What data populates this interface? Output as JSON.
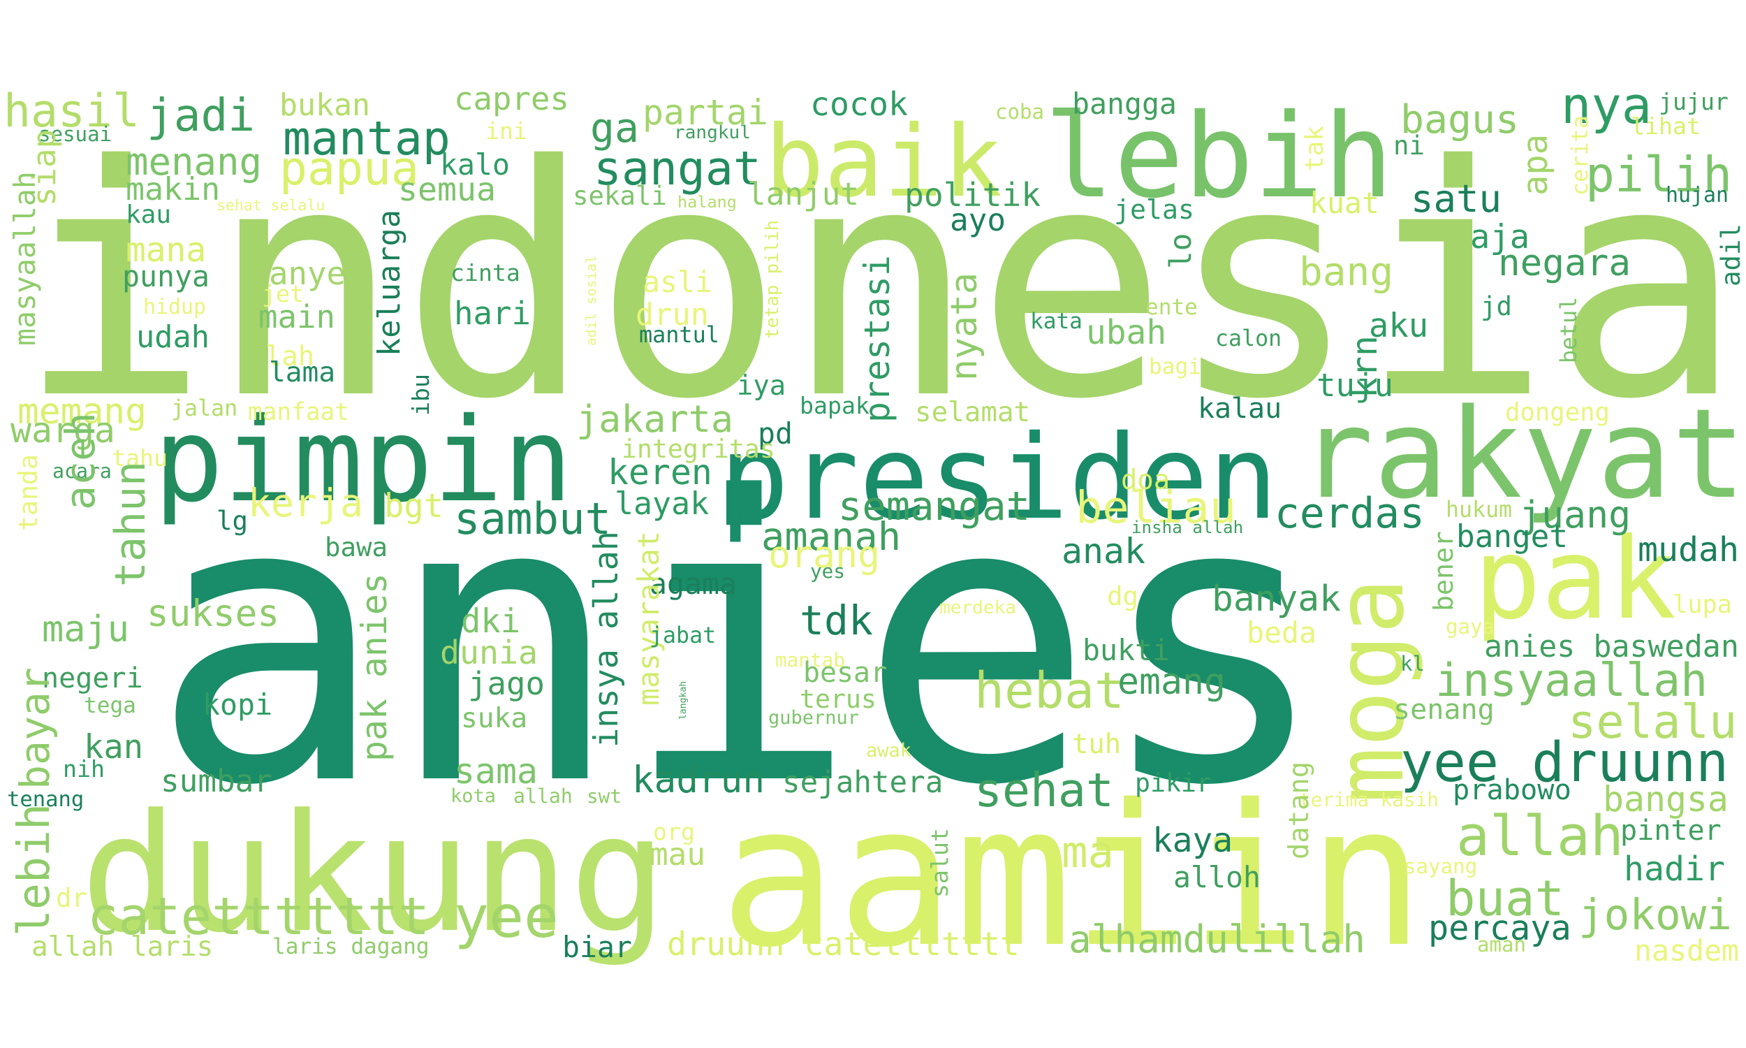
{
  "words": [
    {
      "text": "indonesia",
      "color": "#a5d46a"
    },
    {
      "text": "anies",
      "color": "#198c69"
    },
    {
      "text": "aamiin",
      "color": "#d9f06a"
    },
    {
      "text": "dukung",
      "color": "#b9e16e"
    },
    {
      "text": "pimpin",
      "color": "#228c5f"
    },
    {
      "text": "presiden",
      "color": "#198c69"
    },
    {
      "text": "rakyat",
      "color": "#7cc46b"
    },
    {
      "text": "lebih",
      "color": "#78c26a"
    },
    {
      "text": "baik",
      "color": "#ccea6a"
    },
    {
      "text": "pak",
      "color": "#d9f06a"
    },
    {
      "text": "moga",
      "color": "#d0ec6a"
    },
    {
      "text": "catettttttt",
      "color": "#a3d56b"
    },
    {
      "text": "yee",
      "color": "#a3d56b"
    },
    {
      "text": "yee druunn",
      "color": "#1a7f5a"
    },
    {
      "text": "insyaallah",
      "color": "#7fc46b"
    },
    {
      "text": "allah",
      "color": "#9fd46a"
    },
    {
      "text": "buat",
      "color": "#8fcc6a"
    },
    {
      "text": "jokowi",
      "color": "#8fcc6a"
    },
    {
      "text": "hebat",
      "color": "#b3dd6a"
    },
    {
      "text": "mantap",
      "color": "#228c5f"
    },
    {
      "text": "papua",
      "color": "#d9f06a"
    },
    {
      "text": "sangat",
      "color": "#228c5f"
    },
    {
      "text": "pilih",
      "color": "#7cc46b"
    },
    {
      "text": "nya",
      "color": "#2e9c64"
    },
    {
      "text": "maju",
      "color": "#7cc46b"
    },
    {
      "text": "jadi",
      "color": "#3f9f5f"
    },
    {
      "text": "hasil",
      "color": "#b3dd6a"
    },
    {
      "text": "ga",
      "color": "#3f9f5f"
    },
    {
      "text": "partai",
      "color": "#a3d56b"
    },
    {
      "text": "capres",
      "color": "#8fcc6a"
    },
    {
      "text": "bagus",
      "color": "#8fcc6a"
    },
    {
      "text": "cocok",
      "color": "#2e9c64"
    },
    {
      "text": "bangga",
      "color": "#3f9f5f"
    },
    {
      "text": "jujur",
      "color": "#3f9f5f"
    },
    {
      "text": "menang",
      "color": "#7cc46b"
    },
    {
      "text": "bukan",
      "color": "#b3dd6a"
    },
    {
      "text": "ini",
      "color": "#e8f57a"
    },
    {
      "text": "sesuai",
      "color": "#3f9f5f"
    },
    {
      "text": "rangkul",
      "color": "#3f9f5f"
    },
    {
      "text": "coba",
      "color": "#b3dd6a"
    },
    {
      "text": "lihat",
      "color": "#d9f06a"
    },
    {
      "text": "ni",
      "color": "#3f9f5f"
    },
    {
      "text": "tak",
      "color": "#e8f57a"
    },
    {
      "text": "apa",
      "color": "#a3d56b"
    },
    {
      "text": "cerita",
      "color": "#e8f57a"
    },
    {
      "text": "hujan",
      "color": "#1a7f5a"
    },
    {
      "text": "adil",
      "color": "#228c5f"
    },
    {
      "text": "kalo",
      "color": "#2e9c64"
    },
    {
      "text": "makin",
      "color": "#7cc46b"
    },
    {
      "text": "semua",
      "color": "#7cc46b"
    },
    {
      "text": "siap",
      "color": "#b3dd6a"
    },
    {
      "text": "masyaallah",
      "color": "#8fcc6a"
    },
    {
      "text": "kau",
      "color": "#2e9c64"
    },
    {
      "text": "sehat selalu",
      "color": "#e8f57a"
    },
    {
      "text": "sekali",
      "color": "#7cc46b"
    },
    {
      "text": "halang",
      "color": "#b3dd6a"
    },
    {
      "text": "lanjut",
      "color": "#8fcc6a"
    },
    {
      "text": "politik",
      "color": "#3f9f5f"
    },
    {
      "text": "jelas",
      "color": "#2e9c64"
    },
    {
      "text": "kuat",
      "color": "#d9f06a"
    },
    {
      "text": "satu",
      "color": "#1a7f5a"
    },
    {
      "text": "aja",
      "color": "#2e9c64"
    },
    {
      "text": "negara",
      "color": "#3f9f5f"
    },
    {
      "text": "mana",
      "color": "#d9f06a"
    },
    {
      "text": "punya",
      "color": "#3f9f5f"
    },
    {
      "text": "anye",
      "color": "#a3d56b"
    },
    {
      "text": "cinta",
      "color": "#3f9f5f"
    },
    {
      "text": "keluarga",
      "color": "#1a7f5a"
    },
    {
      "text": "adil sosial",
      "color": "#e8f57a"
    },
    {
      "text": "tetap pilih",
      "color": "#d9f06a"
    },
    {
      "text": "asli",
      "color": "#e8f57a"
    },
    {
      "text": "ayo",
      "color": "#1a7f5a"
    },
    {
      "text": "lo",
      "color": "#3f9f5f"
    },
    {
      "text": "bang",
      "color": "#b3dd6a"
    },
    {
      "text": "ente",
      "color": "#b3dd6a"
    },
    {
      "text": "hidup",
      "color": "#e8f57a"
    },
    {
      "text": "jet",
      "color": "#e8f57a"
    },
    {
      "text": "main",
      "color": "#7cc46b"
    },
    {
      "text": "hari",
      "color": "#2e9c64"
    },
    {
      "text": "drun",
      "color": "#e8f57a"
    },
    {
      "text": "udah",
      "color": "#2e9c64"
    },
    {
      "text": "lah",
      "color": "#e8f57a"
    },
    {
      "text": "mantul",
      "color": "#1a7f5a"
    },
    {
      "text": "lama",
      "color": "#228c5f"
    },
    {
      "text": "prestasi",
      "color": "#2e9c64"
    },
    {
      "text": "nyata",
      "color": "#8fcc6a"
    },
    {
      "text": "ubah",
      "color": "#7cc46b"
    },
    {
      "text": "kata",
      "color": "#2e9c64"
    },
    {
      "text": "calon",
      "color": "#3f9f5f"
    },
    {
      "text": "krn",
      "color": "#2e9c64"
    },
    {
      "text": "aku",
      "color": "#2e9c64"
    },
    {
      "text": "jd",
      "color": "#2e9c64"
    },
    {
      "text": "betul",
      "color": "#7cc46b"
    },
    {
      "text": "bagi",
      "color": "#e8f57a"
    },
    {
      "text": "tuju",
      "color": "#2e9c64"
    },
    {
      "text": "memang",
      "color": "#d9f06a"
    },
    {
      "text": "ibu",
      "color": "#1a7f5a"
    },
    {
      "text": "jalan",
      "color": "#b3dd6a"
    },
    {
      "text": "manfaat",
      "color": "#e8f57a"
    },
    {
      "text": "warga",
      "color": "#8fcc6a"
    },
    {
      "text": "acara",
      "color": "#3f9f5f"
    },
    {
      "text": "tahu",
      "color": "#e8f57a"
    },
    {
      "text": "tanda",
      "color": "#e8f57a"
    },
    {
      "text": "aceh",
      "color": "#7cc46b"
    },
    {
      "text": "tahun",
      "color": "#7cc46b"
    },
    {
      "text": "iya",
      "color": "#2e9c64"
    },
    {
      "text": "bapak",
      "color": "#2e9c64"
    },
    {
      "text": "selamat",
      "color": "#b3dd6a"
    },
    {
      "text": "kalau",
      "color": "#1a7f5a"
    },
    {
      "text": "dongeng",
      "color": "#e8f57a"
    },
    {
      "text": "jakarta",
      "color": "#8fcc6a"
    },
    {
      "text": "pd",
      "color": "#1a7f5a"
    },
    {
      "text": "integritas",
      "color": "#b3dd6a"
    },
    {
      "text": "keren",
      "color": "#2e9c64"
    },
    {
      "text": "kerja",
      "color": "#e8f57a"
    },
    {
      "text": "bgt",
      "color": "#d9f06a"
    },
    {
      "text": "sambut",
      "color": "#228c5f"
    },
    {
      "text": "layak",
      "color": "#2e9c64"
    },
    {
      "text": "semangat",
      "color": "#3f9f5f"
    },
    {
      "text": "beliau",
      "color": "#e8f57a"
    },
    {
      "text": "doa",
      "color": "#d9f06a"
    },
    {
      "text": "cerdas",
      "color": "#228c5f"
    },
    {
      "text": "hukum",
      "color": "#b3dd6a"
    },
    {
      "text": "juang",
      "color": "#3f9f5f"
    },
    {
      "text": "lg",
      "color": "#1a7f5a"
    },
    {
      "text": "insha allah",
      "color": "#3f9f5f"
    },
    {
      "text": "amanah",
      "color": "#3f9f5f"
    },
    {
      "text": "banget",
      "color": "#228c5f"
    },
    {
      "text": "mudah",
      "color": "#1a7f5a"
    },
    {
      "text": "bawa",
      "color": "#3f9f5f"
    },
    {
      "text": "orang",
      "color": "#e8f57a"
    },
    {
      "text": "anak",
      "color": "#228c5f"
    },
    {
      "text": "yes",
      "color": "#3f9f5f"
    },
    {
      "text": "agama",
      "color": "#1a7f5a"
    },
    {
      "text": "bener",
      "color": "#7cc46b"
    },
    {
      "text": "pak anies",
      "color": "#7cc46b"
    },
    {
      "text": "sukses",
      "color": "#8fcc6a"
    },
    {
      "text": "tdk",
      "color": "#1a7f5a"
    },
    {
      "text": "merdeka",
      "color": "#e8f57a"
    },
    {
      "text": "dg",
      "color": "#e8f57a"
    },
    {
      "text": "banyak",
      "color": "#3f9f5f"
    },
    {
      "text": "gaya",
      "color": "#e8f57a"
    },
    {
      "text": "lupa",
      "color": "#e8f57a"
    },
    {
      "text": "insya allah",
      "color": "#228c5f"
    },
    {
      "text": "masyarakat",
      "color": "#d0ec6a"
    },
    {
      "text": "jabat",
      "color": "#2e9c64"
    },
    {
      "text": "dki",
      "color": "#7cc46b"
    },
    {
      "text": "dunia",
      "color": "#a3d56b"
    },
    {
      "text": "beda",
      "color": "#e8f57a"
    },
    {
      "text": "anies baswedan",
      "color": "#3f9f5f"
    },
    {
      "text": "bukti",
      "color": "#3f9f5f"
    },
    {
      "text": "mantab",
      "color": "#e8f57a"
    },
    {
      "text": "kl",
      "color": "#3f9f5f"
    },
    {
      "text": "negeri",
      "color": "#3f9f5f"
    },
    {
      "text": "besar",
      "color": "#7cc46b"
    },
    {
      "text": "bayar",
      "color": "#8fcc6a"
    },
    {
      "text": "jago",
      "color": "#3f9f5f"
    },
    {
      "text": "emang",
      "color": "#3f9f5f"
    },
    {
      "text": "langkah",
      "color": "#3f9f5f"
    },
    {
      "text": "terus",
      "color": "#8fcc6a"
    },
    {
      "text": "tega",
      "color": "#7cc46b"
    },
    {
      "text": "kopi",
      "color": "#2e9c64"
    },
    {
      "text": "gubernur",
      "color": "#7cc46b"
    },
    {
      "text": "senang",
      "color": "#7cc46b"
    },
    {
      "text": "selalu",
      "color": "#b3dd6a"
    },
    {
      "text": "suka",
      "color": "#7cc46b"
    },
    {
      "text": "kan",
      "color": "#3f9f5f"
    },
    {
      "text": "tuh",
      "color": "#d9f06a"
    },
    {
      "text": "awak",
      "color": "#d9f06a"
    },
    {
      "text": "nih",
      "color": "#2e9c64"
    },
    {
      "text": "sama",
      "color": "#7cc46b"
    },
    {
      "text": "kadrun",
      "color": "#228c5f"
    },
    {
      "text": "sejahtera",
      "color": "#3f9f5f"
    },
    {
      "text": "sehat",
      "color": "#3f9f5f"
    },
    {
      "text": "pikir",
      "color": "#2e9c64"
    },
    {
      "text": "prabowo",
      "color": "#228c5f"
    },
    {
      "text": "bangsa",
      "color": "#a3d56b"
    },
    {
      "text": "sumbar",
      "color": "#3f9f5f"
    },
    {
      "text": "tenang",
      "color": "#1a7f5a"
    },
    {
      "text": "kota",
      "color": "#8fcc6a"
    },
    {
      "text": "allah",
      "color": "#8fcc6a"
    },
    {
      "text": "swt",
      "color": "#8fcc6a"
    },
    {
      "text": "terima kasih",
      "color": "#e8f57a"
    },
    {
      "text": "datang",
      "color": "#a3d56b"
    },
    {
      "text": "ma",
      "color": "#d0ec6a"
    },
    {
      "text": "kaya",
      "color": "#1a7f5a"
    },
    {
      "text": "pinter",
      "color": "#3f9f5f"
    },
    {
      "text": "hadir",
      "color": "#2e9c64"
    },
    {
      "text": "org",
      "color": "#e8f57a"
    },
    {
      "text": "mau",
      "color": "#b3dd6a"
    },
    {
      "text": "salut",
      "color": "#7cc46b"
    },
    {
      "text": "alloh",
      "color": "#3f9f5f"
    },
    {
      "text": "sayang",
      "color": "#e8f57a"
    },
    {
      "text": "dr",
      "color": "#e8f57a"
    },
    {
      "text": "lebih",
      "color": "#8fcc6a"
    },
    {
      "text": "allah laris",
      "color": "#b3dd6a"
    },
    {
      "text": "laris dagang",
      "color": "#8fcc6a"
    },
    {
      "text": "biar",
      "color": "#1a7f5a"
    },
    {
      "text": "druunn catettttttt",
      "color": "#d9f06a"
    },
    {
      "text": "alhamdulillah",
      "color": "#8fcc6a"
    },
    {
      "text": "percaya",
      "color": "#1a7f5a"
    },
    {
      "text": "aman",
      "color": "#b3dd6a"
    },
    {
      "text": "nasdem",
      "color": "#e8f57a"
    }
  ]
}
